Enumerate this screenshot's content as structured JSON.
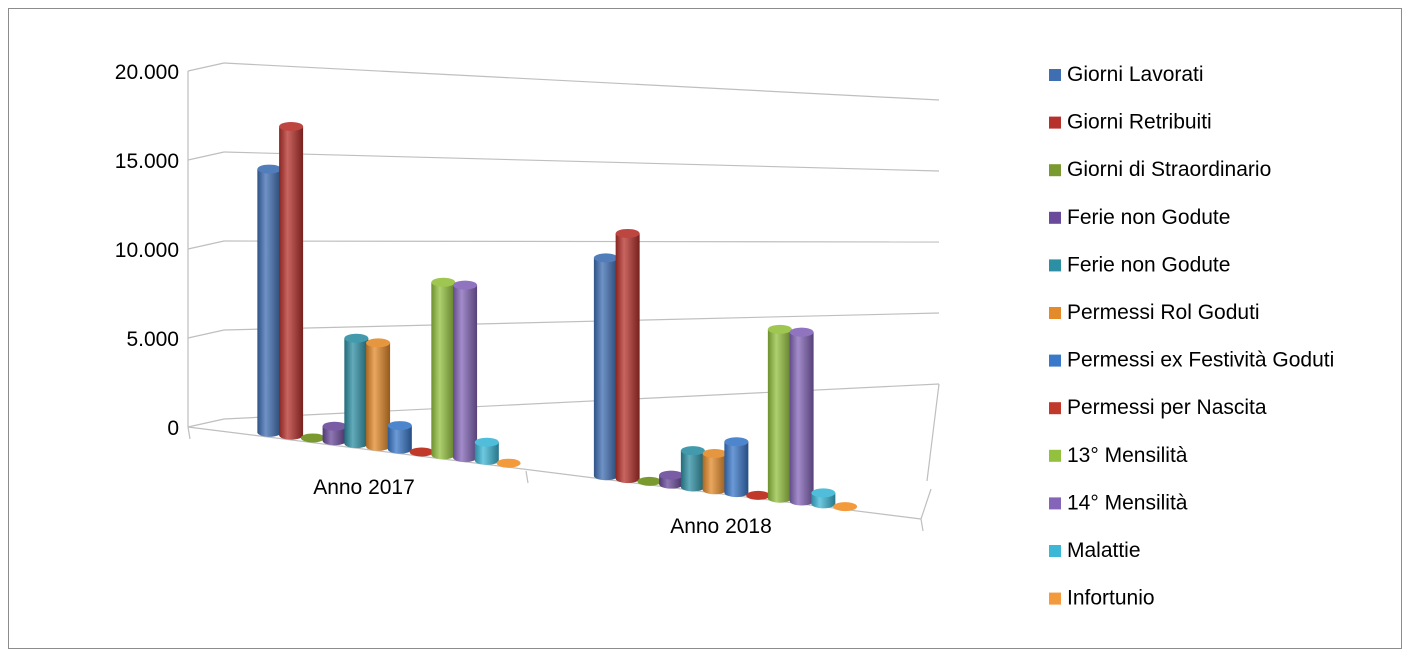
{
  "chart_data": {
    "type": "bar",
    "style": "3d-cylinder",
    "categories": [
      "Anno 2017",
      "Anno 2018"
    ],
    "ylim": [
      0,
      20000
    ],
    "yticks": [
      "0",
      "5.000",
      "10.000",
      "15.000",
      "20.000"
    ],
    "grid": true,
    "legend_position": "right",
    "series": [
      {
        "name": "Giorni Lavorati",
        "color": "#3f6eb3",
        "values": [
          14500,
          12000
        ]
      },
      {
        "name": "Giorni Retribuiti",
        "color": "#b7312c",
        "values": [
          17000,
          13500
        ]
      },
      {
        "name": "Giorni di Straordinario",
        "color": "#7a9a30",
        "values": [
          0,
          0
        ]
      },
      {
        "name": "Ferie non Godute",
        "color": "#6a4a9a",
        "values": [
          800,
          500
        ]
      },
      {
        "name": "Ferie non Godute",
        "color": "#2d8fa3",
        "values": [
          5800,
          2000
        ]
      },
      {
        "name": "Permessi Rol Goduti",
        "color": "#e38a2a",
        "values": [
          5700,
          2000
        ]
      },
      {
        "name": "Permessi ex Festività Goduti",
        "color": "#3a78c9",
        "values": [
          1300,
          2800
        ]
      },
      {
        "name": "Permessi per Nascita",
        "color": "#c0392b",
        "values": [
          0,
          0
        ]
      },
      {
        "name": "13° Mensilità",
        "color": "#93c03d",
        "values": [
          9500,
          9300
        ]
      },
      {
        "name": "14° Mensilità",
        "color": "#8465b8",
        "values": [
          9500,
          9300
        ]
      },
      {
        "name": "Malattie",
        "color": "#3cb7d6",
        "values": [
          1000,
          600
        ]
      },
      {
        "name": "Infortunio",
        "color": "#f39a3c",
        "values": [
          0,
          0
        ]
      }
    ]
  }
}
